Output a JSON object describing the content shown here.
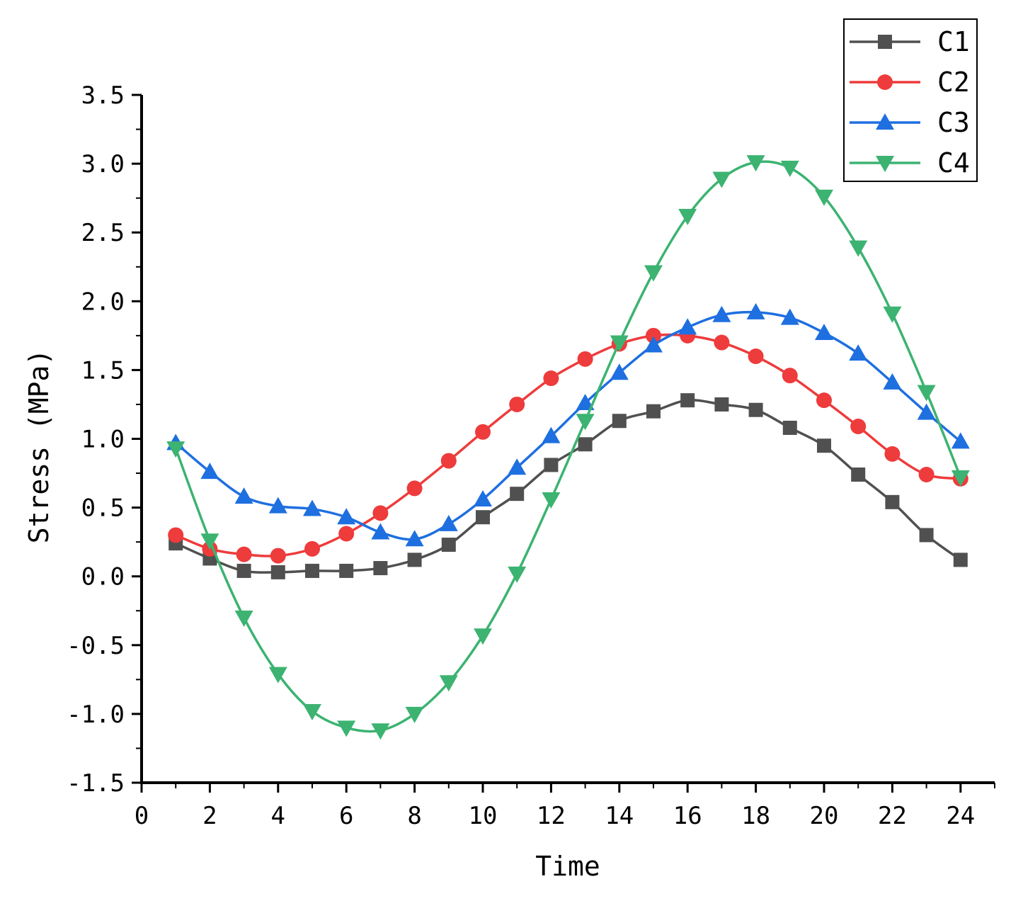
{
  "chart_data": {
    "type": "line",
    "title": "",
    "xlabel": "Time",
    "ylabel": "Stress (MPa)",
    "xlim": [
      0,
      25
    ],
    "ylim": [
      -1.5,
      3.5
    ],
    "xticks": [
      "0",
      "2",
      "4",
      "6",
      "8",
      "10",
      "12",
      "14",
      "16",
      "18",
      "20",
      "22",
      "24"
    ],
    "yticks": [
      "-1.5",
      "-1.0",
      "-0.5",
      "0.0",
      "0.5",
      "1.0",
      "1.5",
      "2.0",
      "2.5",
      "3.0",
      "3.5"
    ],
    "grid": false,
    "legend_position": "top-right",
    "x": [
      1,
      2,
      3,
      4,
      5,
      6,
      7,
      8,
      9,
      10,
      11,
      12,
      13,
      14,
      15,
      16,
      17,
      18,
      19,
      20,
      21,
      22,
      23,
      24
    ],
    "series": [
      {
        "name": "C1",
        "color": "#505050",
        "marker": "square",
        "values": [
          0.24,
          0.13,
          0.04,
          0.03,
          0.04,
          0.04,
          0.06,
          0.12,
          0.23,
          0.43,
          0.6,
          0.81,
          0.96,
          1.13,
          1.2,
          1.28,
          1.25,
          1.21,
          1.08,
          0.95,
          0.74,
          0.54,
          0.3,
          0.12
        ]
      },
      {
        "name": "C2",
        "color": "#EE3B3B",
        "marker": "circle",
        "values": [
          0.3,
          0.2,
          0.16,
          0.15,
          0.2,
          0.31,
          0.46,
          0.64,
          0.84,
          1.05,
          1.25,
          1.44,
          1.58,
          1.69,
          1.75,
          1.75,
          1.7,
          1.6,
          1.46,
          1.28,
          1.09,
          0.89,
          0.74,
          0.71
        ]
      },
      {
        "name": "C3",
        "color": "#1E6FE0",
        "marker": "triangle-up",
        "values": [
          0.97,
          0.76,
          0.58,
          0.51,
          0.49,
          0.43,
          0.32,
          0.27,
          0.38,
          0.56,
          0.79,
          1.02,
          1.26,
          1.48,
          1.68,
          1.81,
          1.9,
          1.92,
          1.88,
          1.77,
          1.62,
          1.41,
          1.19,
          0.98
        ]
      },
      {
        "name": "C4",
        "color": "#3CB371",
        "marker": "triangle-down",
        "values": [
          0.93,
          0.26,
          -0.3,
          -0.71,
          -0.98,
          -1.1,
          -1.12,
          -1.0,
          -0.77,
          -0.43,
          0.02,
          0.56,
          1.13,
          1.7,
          2.21,
          2.62,
          2.89,
          3.01,
          2.97,
          2.76,
          2.39,
          1.91,
          1.34,
          0.72
        ]
      }
    ]
  }
}
